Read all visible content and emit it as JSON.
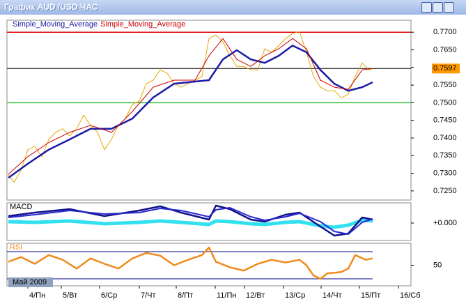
{
  "window": {
    "title": "График AUD /USD  ЧАС"
  },
  "chart_data": [
    {
      "type": "line",
      "ylim": [
        0.7224,
        0.7734
      ],
      "xlim": [
        0,
        580
      ],
      "yticks": [
        {
          "value": 0.77,
          "label": "0.7700"
        },
        {
          "value": 0.765,
          "label": "0.7650"
        },
        {
          "value": 0.76,
          "label": "0.7600"
        },
        {
          "value": 0.755,
          "label": "0.7550"
        },
        {
          "value": 0.75,
          "label": "0.7500"
        },
        {
          "value": 0.745,
          "label": "0.7450"
        },
        {
          "value": 0.74,
          "label": "0.7400"
        },
        {
          "value": 0.735,
          "label": "0.7350"
        },
        {
          "value": 0.73,
          "label": "0.7300"
        },
        {
          "value": 0.725,
          "label": "0.7250"
        }
      ],
      "hlines": [
        {
          "value": 0.77,
          "color": "#e00000"
        },
        {
          "value": 0.75,
          "color": "#30c030"
        }
      ],
      "last_price": {
        "value": 0.7597,
        "label": "0.7597",
        "color": "#ff9900"
      },
      "series": [
        {
          "color": "#e8a800",
          "width": 1,
          "x": [
            2,
            10,
            20,
            30,
            40,
            50,
            60,
            70,
            80,
            90,
            100,
            110,
            120,
            130,
            140,
            150,
            160,
            170,
            180,
            190,
            200,
            210,
            220,
            230,
            240,
            250,
            260,
            270,
            280,
            290,
            300,
            310,
            320,
            330,
            340,
            350,
            360,
            370,
            380,
            390,
            400,
            410,
            420,
            430,
            440,
            450,
            460,
            470,
            480,
            490,
            500,
            510,
            520,
            525
          ],
          "values": [
            0.7297,
            0.7274,
            0.7307,
            0.7367,
            0.7376,
            0.7347,
            0.7396,
            0.7416,
            0.7426,
            0.7406,
            0.7426,
            0.7465,
            0.7436,
            0.7416,
            0.7367,
            0.7396,
            0.7436,
            0.7455,
            0.7495,
            0.7505,
            0.7554,
            0.7564,
            0.7593,
            0.7584,
            0.7554,
            0.7544,
            0.7554,
            0.7564,
            0.7574,
            0.7682,
            0.7692,
            0.7672,
            0.7633,
            0.7603,
            0.7603,
            0.7593,
            0.7593,
            0.7653,
            0.7643,
            0.7662,
            0.7682,
            0.7696,
            0.7702,
            0.7643,
            0.7574,
            0.7544,
            0.7534,
            0.7534,
            0.7514,
            0.7524,
            0.7574,
            0.7613,
            0.7593,
            0.7597
          ]
        },
        {
          "name": "Simple_Moving_Average",
          "color": "#1a1aa8",
          "width": 2.5,
          "x": [
            2,
            30,
            60,
            90,
            120,
            150,
            180,
            210,
            240,
            270,
            290,
            310,
            330,
            350,
            370,
            390,
            410,
            430,
            450,
            470,
            490,
            510,
            525
          ],
          "values": [
            0.7287,
            0.7327,
            0.7367,
            0.7396,
            0.7426,
            0.7426,
            0.7455,
            0.7515,
            0.7554,
            0.756,
            0.7564,
            0.7623,
            0.7649,
            0.7623,
            0.7613,
            0.7633,
            0.7662,
            0.7643,
            0.7593,
            0.7554,
            0.7534,
            0.7544,
            0.7558
          ]
        },
        {
          "name": "Simple_Moving_Average",
          "color": "#cc0000",
          "width": 1,
          "x": [
            2,
            30,
            60,
            90,
            120,
            150,
            180,
            210,
            240,
            270,
            290,
            310,
            330,
            350,
            370,
            390,
            410,
            430,
            450,
            470,
            490,
            510,
            525
          ],
          "values": [
            0.7297,
            0.7347,
            0.7387,
            0.7416,
            0.7436,
            0.7416,
            0.7475,
            0.7544,
            0.7564,
            0.7564,
            0.7633,
            0.7682,
            0.7623,
            0.7603,
            0.7633,
            0.7653,
            0.7682,
            0.7653,
            0.7564,
            0.7544,
            0.7538,
            0.7593,
            0.7597
          ]
        }
      ]
    },
    {
      "type": "line",
      "title": "MACD",
      "ylim": [
        -0.0025,
        0.0029
      ],
      "xlim": [
        0,
        580
      ],
      "yticks": [
        {
          "value": 0,
          "label": "+0.000"
        }
      ],
      "x": [
        2,
        40,
        90,
        140,
        190,
        220,
        250,
        290,
        300,
        320,
        350,
        370,
        400,
        420,
        450,
        470,
        490,
        510,
        525
      ],
      "series": [
        {
          "color": "#33e0f0",
          "width": 5,
          "values": [
            0.0002,
            0.0001,
            0.0003,
            -0.0001,
            0.0001,
            0.0003,
            0.0001,
            -0.0002,
            0.0003,
            0.0002,
            -0.0001,
            -0.0002,
            0.0001,
            0.0002,
            -0.0004,
            -0.0006,
            -0.0003,
            0.0004,
            0.0003
          ]
        },
        {
          "color": "#10108a",
          "width": 2.5,
          "values": [
            0.001,
            0.0015,
            0.002,
            0.001,
            0.0018,
            0.0024,
            0.0015,
            0.0005,
            0.0025,
            0.002,
            0.0005,
            0.0002,
            0.0012,
            0.0015,
            -0.0005,
            -0.0018,
            -0.0015,
            0.0008,
            0.0005
          ]
        },
        {
          "color": "#2b2bd0",
          "width": 2,
          "values": [
            0.0008,
            0.0012,
            0.0018,
            0.0013,
            0.0015,
            0.0021,
            0.0018,
            0.0009,
            0.0019,
            0.0022,
            0.0009,
            0.0004,
            0.0009,
            0.0014,
            0.0002,
            -0.0012,
            -0.0016,
            0.0001,
            0.0006
          ]
        }
      ]
    },
    {
      "type": "line",
      "title": "RSI",
      "ylim": [
        19.7,
        82.3
      ],
      "xlim": [
        0,
        580
      ],
      "yticks": [
        50
      ],
      "levels": [
        70,
        30
      ],
      "annotation": "Май 2009",
      "xticks": [
        {
          "value": 30,
          "label": "4/Пн"
        },
        {
          "value": 78,
          "label": "5/Вт"
        },
        {
          "value": 133,
          "label": "6/Ср"
        },
        {
          "value": 190,
          "label": "7/Чт"
        },
        {
          "value": 243,
          "label": "8/Пт"
        },
        {
          "value": 299,
          "label": "11/Пн"
        },
        {
          "value": 341,
          "label": "12/Вт"
        },
        {
          "value": 397,
          "label": "13/Ср"
        },
        {
          "value": 451,
          "label": "14/Чт"
        },
        {
          "value": 506,
          "label": "15/Пт"
        },
        {
          "value": 562,
          "label": "16/Сб"
        }
      ],
      "x": [
        2,
        20,
        40,
        60,
        80,
        100,
        120,
        140,
        160,
        180,
        200,
        220,
        240,
        260,
        280,
        290,
        300,
        320,
        340,
        360,
        380,
        400,
        420,
        430,
        440,
        450,
        460,
        480,
        490,
        500,
        515,
        525
      ],
      "series": [
        {
          "color": "#f08a1c",
          "width": 2.5,
          "values": [
            55,
            62,
            52,
            65,
            58,
            45,
            60,
            52,
            45,
            60,
            68,
            64,
            50,
            58,
            65,
            76,
            55,
            47,
            42,
            52,
            58,
            54,
            58,
            50,
            35,
            30,
            38,
            40,
            45,
            65,
            58,
            60
          ]
        }
      ]
    }
  ]
}
